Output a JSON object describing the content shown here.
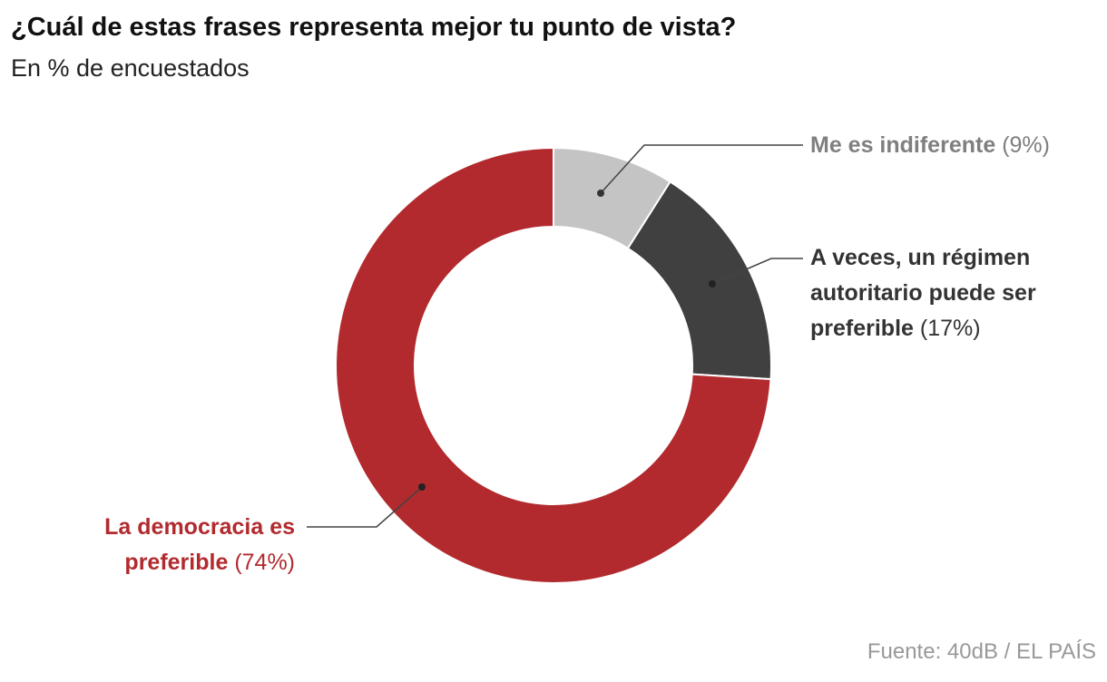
{
  "chart_data": {
    "type": "pie",
    "title": "¿Cuál de estas frases representa mejor tu punto de vista?",
    "subtitle": "En % de encuestados",
    "categories": [
      "Me es indiferente",
      "A veces, un régimen autoritario puede ser preferible",
      "La democracia es preferible"
    ],
    "values": [
      9,
      17,
      74
    ],
    "value_labels": [
      "(9%)",
      "(17%)",
      "(74%)"
    ],
    "colors": [
      "#c4c4c4",
      "#404040",
      "#b22a2e"
    ],
    "source": "Fuente: 40dB / EL PAÍS"
  }
}
